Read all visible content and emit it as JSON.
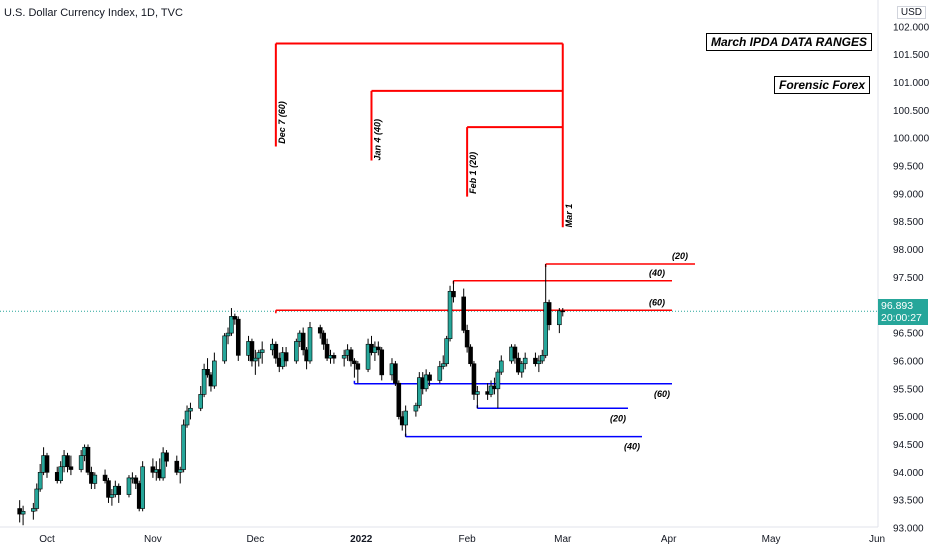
{
  "header": {
    "title": "U.S. Dollar Currency Index, 1D, TVC",
    "currency_button": "USD"
  },
  "labels": {
    "main_box": "March IPDA DATA RANGES",
    "brand_box": "Forensic Forex"
  },
  "price_tag": {
    "price": "96.893",
    "countdown": "20:00:27",
    "color": "#26a69a"
  },
  "colors": {
    "up": "#26a69a",
    "down": "#000000",
    "red_lines": "#ff0000",
    "blue_lines": "#0000ff"
  },
  "chart_data": {
    "type": "candlestick",
    "title": "U.S. Dollar Currency Index, 1D, TVC",
    "x_tick_labels": [
      "Oct",
      "Nov",
      "Dec",
      "2022",
      "Feb",
      "Mar",
      "Apr",
      "May",
      "Jun"
    ],
    "y_tick_labels": [
      "93.000",
      "93.500",
      "94.000",
      "94.500",
      "95.000",
      "95.500",
      "96.000",
      "96.500",
      "97.000",
      "97.500",
      "98.000",
      "98.500",
      "99.000",
      "99.500",
      "100.000",
      "100.500",
      "101.000",
      "101.500",
      "102.000"
    ],
    "ylim": [
      93.0,
      102.2
    ],
    "last_price": 96.893,
    "lookback_markers": [
      {
        "label": "Dec 7 (60)"
      },
      {
        "label": "Jan 4 (40)"
      },
      {
        "label": "Feb 1 (20)"
      },
      {
        "label": "Mar 1"
      }
    ],
    "high_levels": [
      {
        "label": "(20)",
        "value": 97.74
      },
      {
        "label": "(40)",
        "value": 97.44
      },
      {
        "label": "(60)",
        "value": 96.91
      }
    ],
    "low_levels": [
      {
        "label": "(60)",
        "value": 95.59
      },
      {
        "label": "(20)",
        "value": 95.15
      },
      {
        "label": "(40)",
        "value": 94.64
      }
    ],
    "candles": [
      {
        "date": "2021-09-23",
        "o": 93.35,
        "h": 93.5,
        "l": 93.1,
        "c": 93.25
      },
      {
        "date": "2021-09-24",
        "o": 93.25,
        "h": 93.4,
        "l": 93.05,
        "c": 93.3
      },
      {
        "date": "2021-09-27",
        "o": 93.3,
        "h": 93.45,
        "l": 93.15,
        "c": 93.35
      },
      {
        "date": "2021-09-28",
        "o": 93.35,
        "h": 93.8,
        "l": 93.3,
        "c": 93.7
      },
      {
        "date": "2021-09-29",
        "o": 93.7,
        "h": 94.15,
        "l": 93.65,
        "c": 94.0
      },
      {
        "date": "2021-09-30",
        "o": 94.0,
        "h": 94.45,
        "l": 93.95,
        "c": 94.3
      },
      {
        "date": "2021-10-01",
        "o": 94.3,
        "h": 94.35,
        "l": 93.9,
        "c": 94.0
      },
      {
        "date": "2021-10-04",
        "o": 94.0,
        "h": 94.1,
        "l": 93.8,
        "c": 93.85
      },
      {
        "date": "2021-10-05",
        "o": 93.85,
        "h": 94.2,
        "l": 93.8,
        "c": 94.1
      },
      {
        "date": "2021-10-06",
        "o": 94.1,
        "h": 94.4,
        "l": 94.0,
        "c": 94.3
      },
      {
        "date": "2021-10-07",
        "o": 94.3,
        "h": 94.35,
        "l": 94.0,
        "c": 94.1
      },
      {
        "date": "2021-10-08",
        "o": 94.1,
        "h": 94.3,
        "l": 93.95,
        "c": 94.05
      },
      {
        "date": "2021-10-11",
        "o": 94.05,
        "h": 94.4,
        "l": 94.0,
        "c": 94.3
      },
      {
        "date": "2021-10-12",
        "o": 94.3,
        "h": 94.5,
        "l": 94.2,
        "c": 94.45
      },
      {
        "date": "2021-10-13",
        "o": 94.45,
        "h": 94.5,
        "l": 93.95,
        "c": 94.0
      },
      {
        "date": "2021-10-14",
        "o": 94.0,
        "h": 94.1,
        "l": 93.7,
        "c": 93.8
      },
      {
        "date": "2021-10-15",
        "o": 93.8,
        "h": 94.0,
        "l": 93.7,
        "c": 93.95
      },
      {
        "date": "2021-10-18",
        "o": 93.95,
        "h": 94.05,
        "l": 93.8,
        "c": 93.85
      },
      {
        "date": "2021-10-19",
        "o": 93.85,
        "h": 93.9,
        "l": 93.45,
        "c": 93.55
      },
      {
        "date": "2021-10-20",
        "o": 93.55,
        "h": 93.7,
        "l": 93.4,
        "c": 93.6
      },
      {
        "date": "2021-10-21",
        "o": 93.6,
        "h": 93.85,
        "l": 93.55,
        "c": 93.75
      },
      {
        "date": "2021-10-22",
        "o": 93.75,
        "h": 93.8,
        "l": 93.45,
        "c": 93.6
      },
      {
        "date": "2021-10-25",
        "o": 93.6,
        "h": 93.95,
        "l": 93.55,
        "c": 93.9
      },
      {
        "date": "2021-10-26",
        "o": 93.9,
        "h": 94.0,
        "l": 93.8,
        "c": 93.9
      },
      {
        "date": "2021-10-27",
        "o": 93.9,
        "h": 93.95,
        "l": 93.7,
        "c": 93.8
      },
      {
        "date": "2021-10-28",
        "o": 93.8,
        "h": 93.85,
        "l": 93.3,
        "c": 93.35
      },
      {
        "date": "2021-10-29",
        "o": 93.35,
        "h": 94.2,
        "l": 93.3,
        "c": 94.1
      },
      {
        "date": "2021-11-01",
        "o": 94.1,
        "h": 94.25,
        "l": 93.9,
        "c": 94.0
      },
      {
        "date": "2021-11-02",
        "o": 94.0,
        "h": 94.2,
        "l": 93.85,
        "c": 94.05
      },
      {
        "date": "2021-11-03",
        "o": 94.05,
        "h": 94.25,
        "l": 93.85,
        "c": 93.9
      },
      {
        "date": "2021-11-04",
        "o": 93.9,
        "h": 94.45,
        "l": 93.85,
        "c": 94.35
      },
      {
        "date": "2021-11-05",
        "o": 94.35,
        "h": 94.4,
        "l": 94.1,
        "c": 94.2
      },
      {
        "date": "2021-11-08",
        "o": 94.2,
        "h": 94.3,
        "l": 93.95,
        "c": 94.0
      },
      {
        "date": "2021-11-09",
        "o": 94.0,
        "h": 94.1,
        "l": 93.8,
        "c": 94.05
      },
      {
        "date": "2021-11-10",
        "o": 94.05,
        "h": 94.95,
        "l": 94.0,
        "c": 94.85
      },
      {
        "date": "2021-11-11",
        "o": 94.85,
        "h": 95.2,
        "l": 94.8,
        "c": 95.1
      },
      {
        "date": "2021-11-12",
        "o": 95.1,
        "h": 95.25,
        "l": 94.95,
        "c": 95.15
      },
      {
        "date": "2021-11-15",
        "o": 95.15,
        "h": 95.55,
        "l": 95.1,
        "c": 95.4
      },
      {
        "date": "2021-11-16",
        "o": 95.4,
        "h": 95.95,
        "l": 95.35,
        "c": 95.85
      },
      {
        "date": "2021-11-17",
        "o": 95.85,
        "h": 96.05,
        "l": 95.7,
        "c": 95.75
      },
      {
        "date": "2021-11-18",
        "o": 95.75,
        "h": 95.8,
        "l": 95.45,
        "c": 95.55
      },
      {
        "date": "2021-11-19",
        "o": 95.55,
        "h": 96.15,
        "l": 95.5,
        "c": 96.0
      },
      {
        "date": "2021-11-22",
        "o": 96.0,
        "h": 96.5,
        "l": 95.95,
        "c": 96.45
      },
      {
        "date": "2021-11-23",
        "o": 96.45,
        "h": 96.6,
        "l": 96.3,
        "c": 96.5
      },
      {
        "date": "2021-11-24",
        "o": 96.5,
        "h": 96.95,
        "l": 96.45,
        "c": 96.8
      },
      {
        "date": "2021-11-25",
        "o": 96.8,
        "h": 96.85,
        "l": 96.65,
        "c": 96.75
      },
      {
        "date": "2021-11-26",
        "o": 96.75,
        "h": 96.8,
        "l": 96.0,
        "c": 96.1
      },
      {
        "date": "2021-11-29",
        "o": 96.1,
        "h": 96.45,
        "l": 96.0,
        "c": 96.35
      },
      {
        "date": "2021-11-30",
        "o": 96.35,
        "h": 96.4,
        "l": 95.9,
        "c": 96.0
      },
      {
        "date": "2021-12-01",
        "o": 96.0,
        "h": 96.2,
        "l": 95.75,
        "c": 96.05
      },
      {
        "date": "2021-12-02",
        "o": 96.05,
        "h": 96.2,
        "l": 95.9,
        "c": 96.15
      },
      {
        "date": "2021-12-03",
        "o": 96.15,
        "h": 96.35,
        "l": 95.95,
        "c": 96.2
      },
      {
        "date": "2021-12-06",
        "o": 96.2,
        "h": 96.4,
        "l": 96.1,
        "c": 96.3
      },
      {
        "date": "2021-12-07",
        "o": 96.3,
        "h": 96.35,
        "l": 95.95,
        "c": 96.05
      },
      {
        "date": "2021-12-08",
        "o": 96.05,
        "h": 96.15,
        "l": 95.8,
        "c": 95.9
      },
      {
        "date": "2021-12-09",
        "o": 95.9,
        "h": 96.25,
        "l": 95.85,
        "c": 96.15
      },
      {
        "date": "2021-12-10",
        "o": 96.15,
        "h": 96.25,
        "l": 95.9,
        "c": 96.0
      },
      {
        "date": "2021-12-13",
        "o": 96.0,
        "h": 96.4,
        "l": 95.95,
        "c": 96.35
      },
      {
        "date": "2021-12-14",
        "o": 96.35,
        "h": 96.55,
        "l": 96.25,
        "c": 96.5
      },
      {
        "date": "2021-12-15",
        "o": 96.5,
        "h": 96.6,
        "l": 96.1,
        "c": 96.2
      },
      {
        "date": "2021-12-16",
        "o": 96.2,
        "h": 96.25,
        "l": 95.85,
        "c": 96.0
      },
      {
        "date": "2021-12-17",
        "o": 96.0,
        "h": 96.7,
        "l": 95.95,
        "c": 96.6
      },
      {
        "date": "2021-12-20",
        "o": 96.6,
        "h": 96.65,
        "l": 96.4,
        "c": 96.5
      },
      {
        "date": "2021-12-21",
        "o": 96.5,
        "h": 96.55,
        "l": 96.2,
        "c": 96.3
      },
      {
        "date": "2021-12-22",
        "o": 96.3,
        "h": 96.4,
        "l": 96.0,
        "c": 96.05
      },
      {
        "date": "2021-12-23",
        "o": 96.05,
        "h": 96.2,
        "l": 95.95,
        "c": 96.1
      },
      {
        "date": "2021-12-24",
        "o": 96.1,
        "h": 96.15,
        "l": 95.95,
        "c": 96.05
      },
      {
        "date": "2021-12-27",
        "o": 96.05,
        "h": 96.2,
        "l": 95.9,
        "c": 96.1
      },
      {
        "date": "2021-12-28",
        "o": 96.1,
        "h": 96.3,
        "l": 96.0,
        "c": 96.2
      },
      {
        "date": "2021-12-29",
        "o": 96.2,
        "h": 96.25,
        "l": 95.9,
        "c": 96.0
      },
      {
        "date": "2021-12-30",
        "o": 96.0,
        "h": 96.05,
        "l": 95.7,
        "c": 95.95
      },
      {
        "date": "2021-12-31",
        "o": 95.95,
        "h": 96.0,
        "l": 95.6,
        "c": 95.85
      },
      {
        "date": "2022-01-03",
        "o": 95.85,
        "h": 96.4,
        "l": 95.8,
        "c": 96.3
      },
      {
        "date": "2022-01-04",
        "o": 96.3,
        "h": 96.45,
        "l": 96.1,
        "c": 96.15
      },
      {
        "date": "2022-01-05",
        "o": 96.15,
        "h": 96.35,
        "l": 96.0,
        "c": 96.25
      },
      {
        "date": "2022-01-06",
        "o": 96.25,
        "h": 96.35,
        "l": 96.1,
        "c": 96.2
      },
      {
        "date": "2022-01-07",
        "o": 96.2,
        "h": 96.25,
        "l": 95.65,
        "c": 95.75
      },
      {
        "date": "2022-01-10",
        "o": 95.75,
        "h": 96.05,
        "l": 95.65,
        "c": 95.95
      },
      {
        "date": "2022-01-11",
        "o": 95.95,
        "h": 96.0,
        "l": 95.55,
        "c": 95.6
      },
      {
        "date": "2022-01-12",
        "o": 95.6,
        "h": 95.65,
        "l": 94.95,
        "c": 95.0
      },
      {
        "date": "2022-01-13",
        "o": 95.0,
        "h": 95.1,
        "l": 94.75,
        "c": 94.85
      },
      {
        "date": "2022-01-14",
        "o": 94.85,
        "h": 95.2,
        "l": 94.64,
        "c": 95.1
      },
      {
        "date": "2022-01-17",
        "o": 95.1,
        "h": 95.25,
        "l": 95.0,
        "c": 95.2
      },
      {
        "date": "2022-01-18",
        "o": 95.2,
        "h": 95.8,
        "l": 95.15,
        "c": 95.7
      },
      {
        "date": "2022-01-19",
        "o": 95.7,
        "h": 95.8,
        "l": 95.4,
        "c": 95.5
      },
      {
        "date": "2022-01-20",
        "o": 95.5,
        "h": 95.85,
        "l": 95.45,
        "c": 95.75
      },
      {
        "date": "2022-01-21",
        "o": 95.75,
        "h": 95.8,
        "l": 95.55,
        "c": 95.65
      },
      {
        "date": "2022-01-24",
        "o": 95.65,
        "h": 96.0,
        "l": 95.6,
        "c": 95.9
      },
      {
        "date": "2022-01-25",
        "o": 95.9,
        "h": 96.1,
        "l": 95.85,
        "c": 95.95
      },
      {
        "date": "2022-01-26",
        "o": 95.95,
        "h": 96.45,
        "l": 95.9,
        "c": 96.4
      },
      {
        "date": "2022-01-27",
        "o": 96.4,
        "h": 97.35,
        "l": 96.35,
        "c": 97.25
      },
      {
        "date": "2022-01-28",
        "o": 97.25,
        "h": 97.44,
        "l": 97.05,
        "c": 97.15
      },
      {
        "date": "2022-01-31",
        "o": 97.15,
        "h": 97.3,
        "l": 96.5,
        "c": 96.55
      },
      {
        "date": "2022-02-01",
        "o": 96.55,
        "h": 96.65,
        "l": 96.15,
        "c": 96.25
      },
      {
        "date": "2022-02-02",
        "o": 96.25,
        "h": 96.3,
        "l": 95.9,
        "c": 95.95
      },
      {
        "date": "2022-02-03",
        "o": 95.95,
        "h": 96.0,
        "l": 95.3,
        "c": 95.4
      },
      {
        "date": "2022-02-04",
        "o": 95.4,
        "h": 95.55,
        "l": 95.15,
        "c": 95.45
      },
      {
        "date": "2022-02-07",
        "o": 95.45,
        "h": 95.6,
        "l": 95.3,
        "c": 95.4
      },
      {
        "date": "2022-02-08",
        "o": 95.4,
        "h": 95.65,
        "l": 95.35,
        "c": 95.55
      },
      {
        "date": "2022-02-09",
        "o": 95.55,
        "h": 95.7,
        "l": 95.4,
        "c": 95.5
      },
      {
        "date": "2022-02-10",
        "o": 95.5,
        "h": 95.85,
        "l": 95.15,
        "c": 95.8
      },
      {
        "date": "2022-02-11",
        "o": 95.8,
        "h": 96.1,
        "l": 95.75,
        "c": 96.0
      },
      {
        "date": "2022-02-14",
        "o": 96.0,
        "h": 96.3,
        "l": 95.95,
        "c": 96.25
      },
      {
        "date": "2022-02-15",
        "o": 96.25,
        "h": 96.3,
        "l": 95.95,
        "c": 96.05
      },
      {
        "date": "2022-02-16",
        "o": 96.05,
        "h": 96.15,
        "l": 95.75,
        "c": 95.8
      },
      {
        "date": "2022-02-17",
        "o": 95.8,
        "h": 96.0,
        "l": 95.7,
        "c": 95.95
      },
      {
        "date": "2022-02-18",
        "o": 95.95,
        "h": 96.15,
        "l": 95.85,
        "c": 96.05
      },
      {
        "date": "2022-02-21",
        "o": 96.05,
        "h": 96.15,
        "l": 95.9,
        "c": 95.95
      },
      {
        "date": "2022-02-22",
        "o": 95.95,
        "h": 96.1,
        "l": 95.8,
        "c": 96.0
      },
      {
        "date": "2022-02-23",
        "o": 96.0,
        "h": 96.2,
        "l": 95.95,
        "c": 96.1
      },
      {
        "date": "2022-02-24",
        "o": 96.1,
        "h": 97.74,
        "l": 96.05,
        "c": 97.05
      },
      {
        "date": "2022-02-25",
        "o": 97.05,
        "h": 97.1,
        "l": 96.55,
        "c": 96.65
      },
      {
        "date": "2022-02-28",
        "o": 96.65,
        "h": 96.95,
        "l": 96.5,
        "c": 96.9
      },
      {
        "date": "2022-03-01",
        "o": 96.9,
        "h": 96.95,
        "l": 96.8,
        "c": 96.893
      }
    ]
  }
}
